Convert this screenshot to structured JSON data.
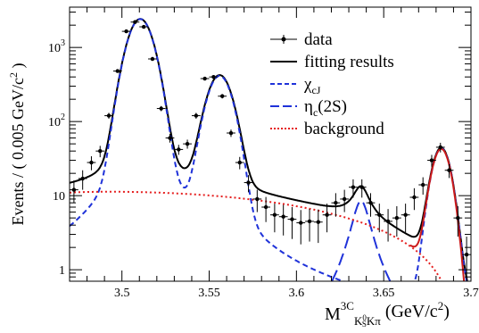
{
  "chart_data": {
    "type": "line",
    "ylabel_main": "Events / ( 0.005 GeV/c",
    "ylabel_sup": "2",
    "ylabel_end": " )",
    "xlabel": {
      "main": "M",
      "sup": "3C",
      "sub_a": "K",
      "sub_sup": "0",
      "sub_sub": "S",
      "sub_b": "Kπ",
      "unit_pre": " (GeV/c",
      "unit_sup": "2",
      "unit_post": ")"
    },
    "xlim": [
      3.47,
      3.7
    ],
    "ylim": [
      0.7,
      3500
    ],
    "ylog": true,
    "x_ticks": [
      {
        "value": 3.5,
        "label": "3.5"
      },
      {
        "value": 3.55,
        "label": "3.55"
      },
      {
        "value": 3.6,
        "label": "3.6"
      },
      {
        "value": 3.65,
        "label": "3.65"
      },
      {
        "value": 3.7,
        "label": "3.7"
      }
    ],
    "y_ticks": [
      {
        "value": 1,
        "base": "1",
        "exp": ""
      },
      {
        "value": 10,
        "base": "10",
        "exp": ""
      },
      {
        "value": 100,
        "base": "10",
        "exp": "2"
      },
      {
        "value": 1000,
        "base": "10",
        "exp": "3"
      }
    ],
    "legend": {
      "placement": "top-right",
      "entries": [
        {
          "key": "data",
          "label": "data",
          "style": "marker",
          "color": "#000000"
        },
        {
          "key": "fit",
          "label": "fitting results",
          "style": "solid",
          "color": "#000000"
        },
        {
          "key": "chicj",
          "label": "χ",
          "sub": "cJ",
          "style": "dashed",
          "color": "#1f32d9"
        },
        {
          "key": "etac",
          "label": "η",
          "sub": "c",
          "suffix": "(2S)",
          "style": "longdash",
          "color": "#1f32d9"
        },
        {
          "key": "bkg",
          "label": "background",
          "style": "dotted",
          "color": "#e51e1e"
        }
      ]
    },
    "series": [
      {
        "name": "data",
        "type": "points",
        "color": "#000000",
        "x": [
          3.4725,
          3.4775,
          3.4825,
          3.4875,
          3.4925,
          3.4975,
          3.5025,
          3.5075,
          3.5125,
          3.5175,
          3.5225,
          3.5275,
          3.5325,
          3.5375,
          3.5425,
          3.5475,
          3.5525,
          3.5575,
          3.5625,
          3.5675,
          3.5725,
          3.5775,
          3.5825,
          3.5875,
          3.5925,
          3.5975,
          3.6025,
          3.6075,
          3.6125,
          3.6175,
          3.6225,
          3.6275,
          3.6325,
          3.6375,
          3.6425,
          3.6475,
          3.6525,
          3.6575,
          3.6625,
          3.6675,
          3.6725,
          3.6775,
          3.6825,
          3.6875,
          3.6925,
          3.6975
        ],
        "y": [
          12,
          17,
          28,
          40,
          120,
          480,
          1650,
          2200,
          1900,
          700,
          150,
          60,
          42,
          50,
          120,
          380,
          400,
          220,
          70,
          28,
          15,
          9,
          7,
          5.5,
          5.2,
          4.8,
          4.3,
          4.5,
          4.4,
          5.5,
          8,
          9,
          13,
          13,
          8,
          5.5,
          4.5,
          5,
          5.5,
          9.5,
          14,
          30,
          45,
          22,
          5,
          1.6
        ],
        "err": [
          4,
          5,
          6,
          7,
          11,
          22,
          40,
          47,
          44,
          26,
          12,
          8,
          6.5,
          7,
          11,
          19,
          20,
          15,
          8,
          5.3,
          3.9,
          3,
          2.6,
          2.3,
          2.3,
          2.2,
          2.1,
          2.1,
          2.1,
          2.3,
          2.8,
          3,
          3.6,
          3.6,
          2.8,
          2.3,
          2.1,
          2.2,
          2.3,
          3.1,
          3.7,
          5.5,
          6.7,
          4.7,
          2.2,
          1.2
        ]
      },
      {
        "name": "fitting results",
        "type": "curve",
        "style": "solid",
        "color": "#000000",
        "curve": "fit"
      },
      {
        "name": "χcJ",
        "type": "curve",
        "style": "dashed",
        "color": "#1f32d9",
        "curve": "chicj"
      },
      {
        "name": "ηc(2S)",
        "type": "curve",
        "style": "longdash",
        "color": "#1f32d9",
        "curve": "etac"
      },
      {
        "name": "background",
        "type": "curve",
        "style": "dotted",
        "color": "#e51e1e",
        "curve": "bkg"
      },
      {
        "name": "",
        "type": "curve",
        "style": "solid",
        "color": "#cc1a1a",
        "curve": "chi2tail"
      }
    ],
    "model": {
      "peaks": [
        {
          "m": 3.5105,
          "sigma": 0.0062,
          "amp": 2350
        },
        {
          "m": 3.556,
          "sigma": 0.006,
          "amp": 400
        },
        {
          "m": 3.683,
          "sigma": 0.0045,
          "amp": 42
        }
      ],
      "etac": {
        "m": 3.637,
        "width": 0.01,
        "amp": 8.5
      },
      "bkg": {
        "c0": 11.5,
        "slope": -1,
        "wiggle": 0
      }
    }
  }
}
